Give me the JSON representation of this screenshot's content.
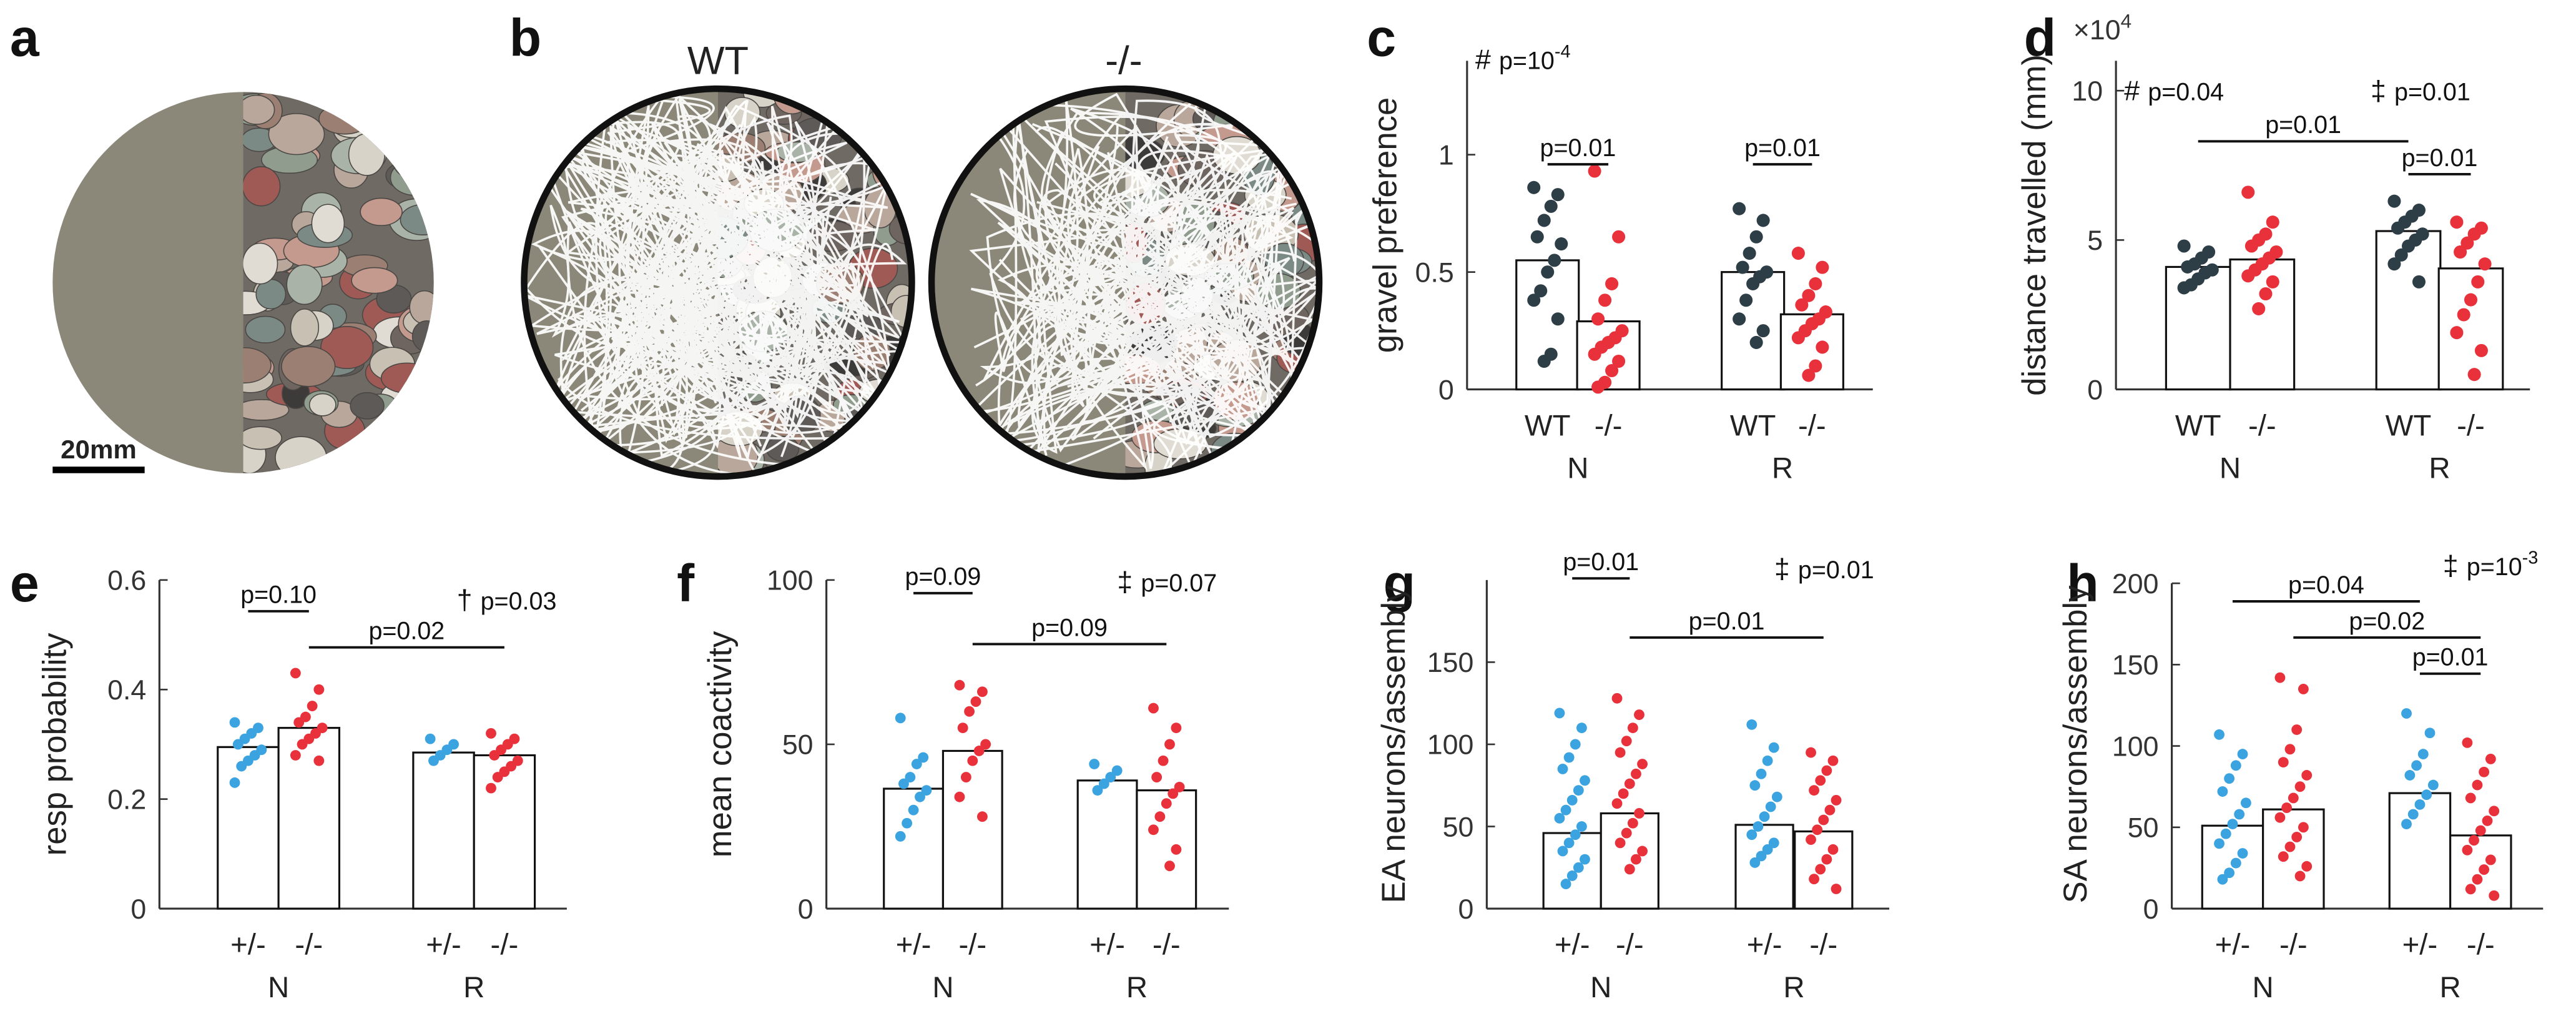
{
  "chart_data": [
    {
      "type": "image",
      "label": "a",
      "scale_bar": "20mm"
    },
    {
      "type": "image",
      "label": "b",
      "titles": [
        "WT",
        "-/-"
      ]
    },
    {
      "type": "bar",
      "label": "c",
      "ylabel": "gravel preference",
      "categories": [
        "WT",
        "-/-",
        "WT",
        "-/-"
      ],
      "groups": [
        "N",
        "R"
      ],
      "colors": [
        "#2d3e46",
        "#e8313a",
        "#2d3e46",
        "#e8313a"
      ],
      "values": [
        0.55,
        0.29,
        0.5,
        0.32
      ],
      "points": [
        [
          0.86,
          0.83,
          0.78,
          0.72,
          0.65,
          0.62,
          0.55,
          0.5,
          0.42,
          0.38,
          0.3,
          0.15,
          0.12
        ],
        [
          0.93,
          0.65,
          0.45,
          0.38,
          0.3,
          0.25,
          0.22,
          0.2,
          0.18,
          0.15,
          0.12,
          0.08,
          0.03,
          0.01
        ],
        [
          0.77,
          0.72,
          0.65,
          0.58,
          0.52,
          0.5,
          0.48,
          0.45,
          0.38,
          0.3,
          0.25,
          0.2
        ],
        [
          0.58,
          0.52,
          0.45,
          0.4,
          0.36,
          0.33,
          0.3,
          0.28,
          0.25,
          0.22,
          0.18,
          0.1,
          0.06
        ]
      ],
      "ylim": [
        0,
        1.4
      ],
      "yticks": [
        0,
        0.5,
        1
      ],
      "brackets": [
        {
          "from": 0,
          "to": 1,
          "label": "p=0.01"
        },
        {
          "from": 2,
          "to": 3,
          "label": "p=0.01"
        }
      ],
      "notes": [
        {
          "symbol": "#",
          "text": "p=10",
          "sup": "-4"
        }
      ]
    },
    {
      "type": "bar",
      "label": "d",
      "ylabel": "distance travelled (mm)",
      "yunit": {
        "text": "×10",
        "sup": "4"
      },
      "categories": [
        "WT",
        "-/-",
        "WT",
        "-/-"
      ],
      "groups": [
        "N",
        "R"
      ],
      "colors": [
        "#2d3e46",
        "#e8313a",
        "#2d3e46",
        "#e8313a"
      ],
      "values": [
        4.1,
        4.35,
        5.3,
        4.05
      ],
      "points": [
        [
          4.8,
          4.6,
          4.4,
          4.2,
          4.1,
          4.0,
          3.9,
          3.7,
          3.5,
          3.4
        ],
        [
          6.6,
          5.6,
          5.2,
          5.0,
          4.8,
          4.6,
          4.4,
          4.2,
          4.0,
          3.8,
          3.6,
          3.2,
          2.7
        ],
        [
          6.3,
          6.0,
          5.8,
          5.6,
          5.4,
          5.2,
          5.0,
          4.8,
          4.5,
          4.2,
          3.6
        ],
        [
          5.6,
          5.4,
          5.2,
          4.9,
          4.6,
          4.2,
          3.6,
          3.0,
          2.5,
          1.9,
          1.3,
          0.5
        ]
      ],
      "ylim": [
        0,
        11
      ],
      "yticks": [
        0,
        5,
        10
      ],
      "brackets": [
        {
          "from": 0,
          "to": 2,
          "label": "p=0.01"
        },
        {
          "from": 2,
          "to": 3,
          "label": "p=0.01"
        }
      ],
      "notes": [
        {
          "symbol": "#",
          "text": "p=0.04"
        },
        {
          "symbol": "‡",
          "text": "p=0.01"
        }
      ]
    },
    {
      "type": "bar",
      "label": "e",
      "ylabel": "resp probability",
      "categories": [
        "+/-",
        "-/-",
        "+/-",
        "-/-"
      ],
      "groups": [
        "N",
        "R"
      ],
      "colors": [
        "#3aa3e0",
        "#e8313a",
        "#3aa3e0",
        "#e8313a"
      ],
      "values": [
        0.295,
        0.33,
        0.285,
        0.28
      ],
      "points": [
        [
          0.34,
          0.33,
          0.32,
          0.31,
          0.3,
          0.29,
          0.28,
          0.27,
          0.26,
          0.23
        ],
        [
          0.43,
          0.4,
          0.37,
          0.35,
          0.34,
          0.33,
          0.32,
          0.31,
          0.3,
          0.28,
          0.27
        ],
        [
          0.31,
          0.3,
          0.29,
          0.28,
          0.27
        ],
        [
          0.32,
          0.31,
          0.3,
          0.29,
          0.28,
          0.27,
          0.26,
          0.25,
          0.24,
          0.22
        ]
      ],
      "ylim": [
        0,
        0.6
      ],
      "yticks": [
        0,
        0.2,
        0.4,
        0.6
      ],
      "brackets": [
        {
          "from": 0,
          "to": 1,
          "label": "p=0.10"
        },
        {
          "from": 1,
          "to": 3,
          "label": "p=0.02"
        }
      ],
      "notes": [
        {
          "symbol": "†",
          "text": "p=0.03"
        }
      ]
    },
    {
      "type": "bar",
      "label": "f",
      "ylabel": "mean coactivity",
      "categories": [
        "+/-",
        "-/-",
        "+/-",
        "-/-"
      ],
      "groups": [
        "N",
        "R"
      ],
      "colors": [
        "#3aa3e0",
        "#e8313a",
        "#3aa3e0",
        "#e8313a"
      ],
      "values": [
        36.5,
        48,
        39,
        36
      ],
      "points": [
        [
          58,
          46,
          44,
          40,
          38,
          36,
          34,
          30,
          26,
          22
        ],
        [
          68,
          66,
          63,
          60,
          55,
          50,
          48,
          45,
          40,
          34,
          28
        ],
        [
          44,
          42,
          40,
          38,
          36
        ],
        [
          61,
          55,
          50,
          45,
          40,
          37,
          35,
          32,
          28,
          24,
          18,
          13
        ]
      ],
      "ylim": [
        0,
        100
      ],
      "yticks": [
        0,
        50,
        100
      ],
      "brackets": [
        {
          "from": 0,
          "to": 1,
          "label": "p=0.09"
        },
        {
          "from": 1,
          "to": 3,
          "label": "p=0.09"
        }
      ],
      "notes": [
        {
          "symbol": "‡",
          "text": "p=0.07"
        }
      ]
    },
    {
      "type": "bar",
      "label": "g",
      "ylabel": "EA neurons/assembly",
      "categories": [
        "+/-",
        "-/-",
        "+/-",
        "-/-"
      ],
      "groups": [
        "N",
        "R"
      ],
      "colors": [
        "#3aa3e0",
        "#e8313a",
        "#3aa3e0",
        "#e8313a"
      ],
      "values": [
        46,
        58,
        51,
        47
      ],
      "points": [
        [
          119,
          110,
          100,
          92,
          85,
          78,
          72,
          66,
          60,
          55,
          50,
          45,
          40,
          35,
          30,
          25,
          20,
          15
        ],
        [
          128,
          118,
          110,
          102,
          95,
          88,
          82,
          76,
          70,
          64,
          58,
          52,
          46,
          40,
          35,
          30,
          24
        ],
        [
          112,
          98,
          90,
          82,
          75,
          68,
          62,
          56,
          50,
          45,
          40,
          36,
          32,
          28
        ],
        [
          95,
          90,
          84,
          78,
          72,
          66,
          60,
          54,
          48,
          42,
          36,
          30,
          24,
          18,
          12
        ]
      ],
      "ylim": [
        0,
        200
      ],
      "yticks": [
        0,
        50,
        100,
        150
      ],
      "brackets": [
        {
          "from": 0,
          "to": 1,
          "label": "p=0.01"
        },
        {
          "from": 1,
          "to": 3,
          "label": "p=0.01"
        }
      ],
      "notes": [
        {
          "symbol": "‡",
          "text": "p=0.01"
        }
      ]
    },
    {
      "type": "bar",
      "label": "h",
      "ylabel": "SA neurons/assembly",
      "categories": [
        "+/-",
        "-/-",
        "+/-",
        "-/-"
      ],
      "groups": [
        "N",
        "R"
      ],
      "colors": [
        "#3aa3e0",
        "#e8313a",
        "#3aa3e0",
        "#e8313a"
      ],
      "values": [
        51,
        61,
        71,
        45
      ],
      "points": [
        [
          107,
          95,
          88,
          80,
          72,
          65,
          58,
          52,
          46,
          40,
          34,
          28,
          22,
          18
        ],
        [
          142,
          135,
          110,
          98,
          90,
          82,
          75,
          68,
          62,
          56,
          50,
          44,
          38,
          32,
          26,
          20
        ],
        [
          120,
          108,
          95,
          88,
          82,
          76,
          70,
          64,
          58,
          52
        ],
        [
          102,
          92,
          84,
          76,
          68,
          60,
          54,
          48,
          42,
          36,
          30,
          24,
          18,
          12,
          8
        ]
      ],
      "ylim": [
        0,
        200
      ],
      "yticks": [
        0,
        50,
        100,
        150,
        200
      ],
      "brackets": [
        {
          "from": 0,
          "to": 2,
          "label": "p=0.04"
        },
        {
          "from": 1,
          "to": 3,
          "label": "p=0.02"
        },
        {
          "from": 2,
          "to": 3,
          "label": "p=0.01"
        }
      ],
      "notes": [
        {
          "symbol": "‡",
          "text": "p=10",
          "sup": "-3"
        }
      ]
    }
  ]
}
